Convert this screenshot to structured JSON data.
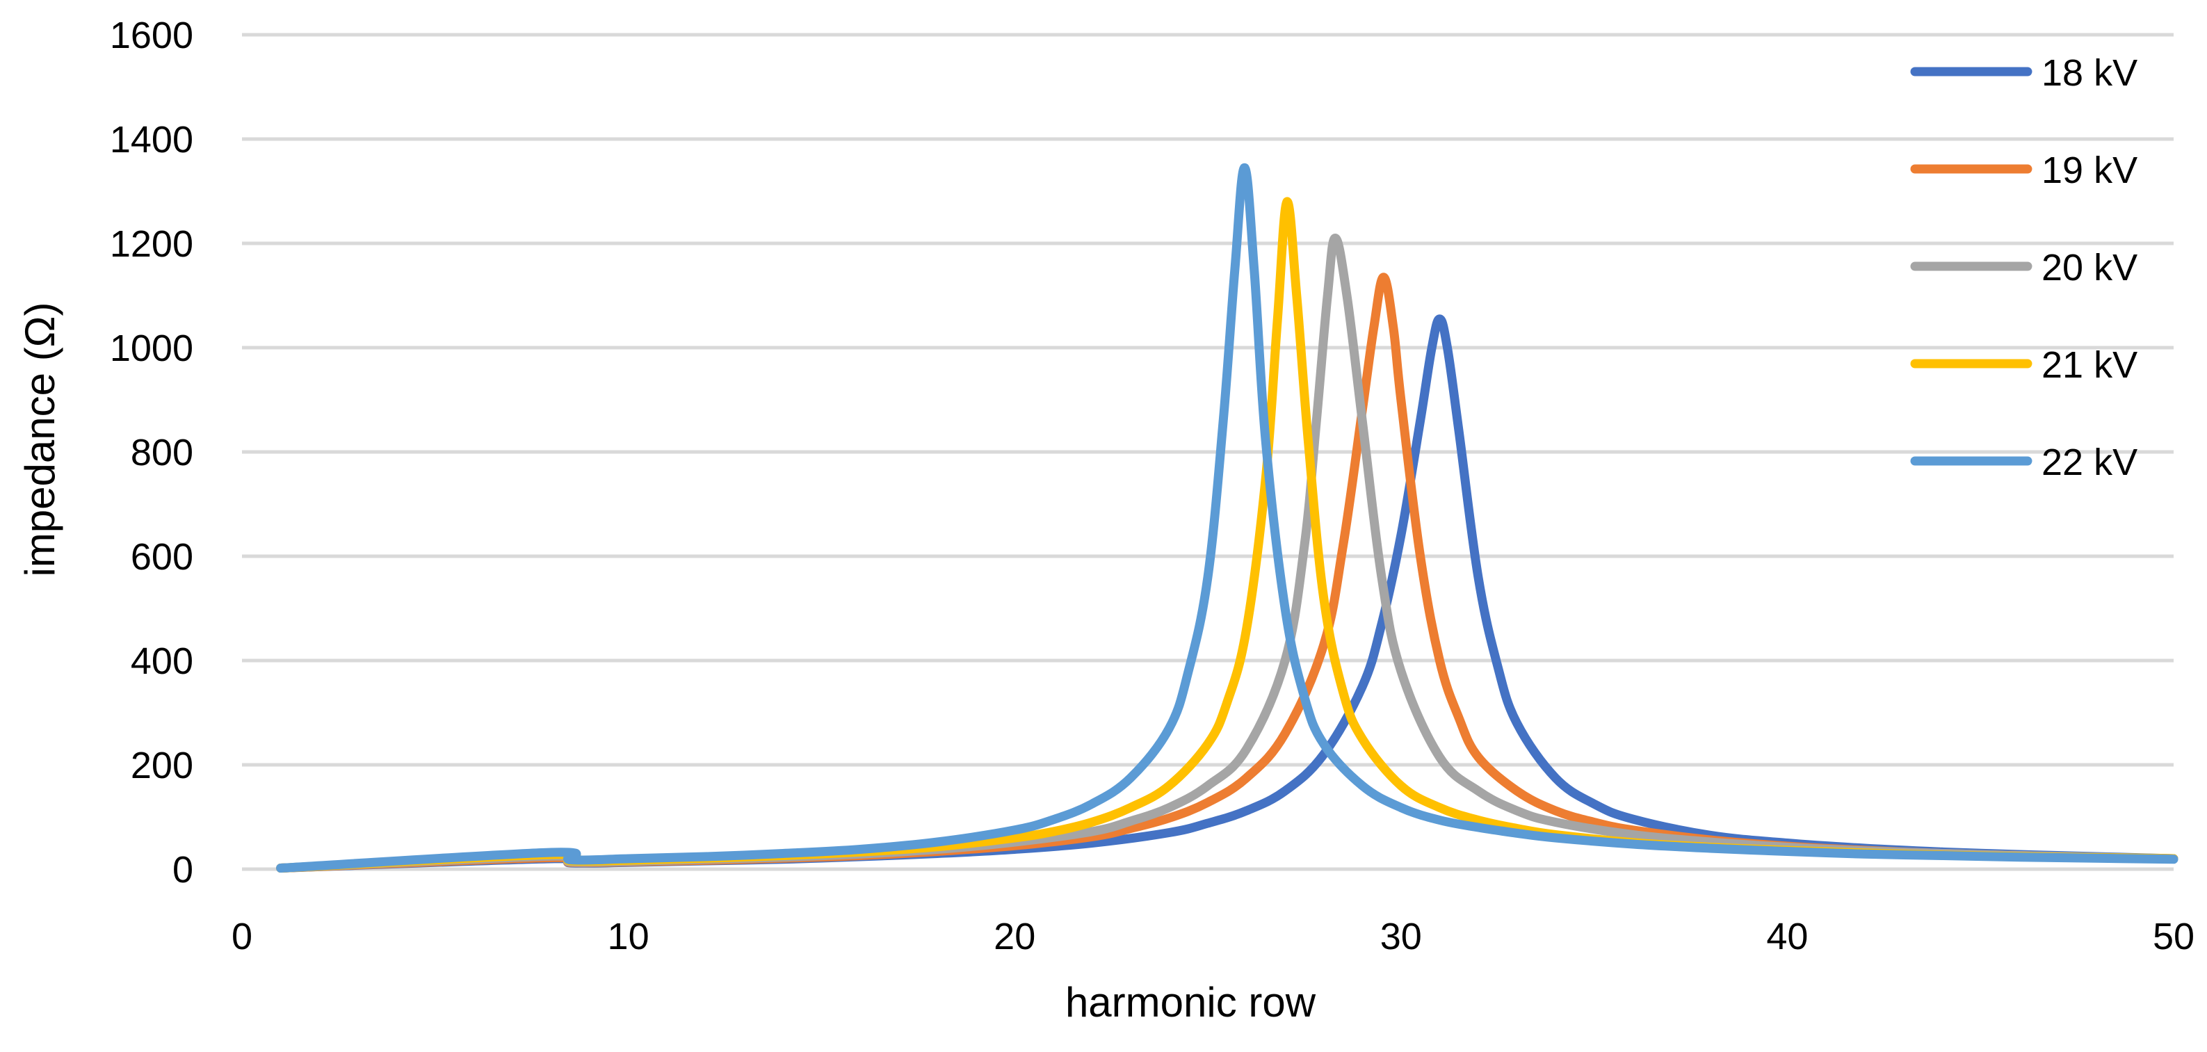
{
  "chart_data": {
    "type": "line",
    "title": "",
    "xlabel": "harmonic row",
    "ylabel": "impedance (Ω)",
    "xlim": [
      0,
      50
    ],
    "ylim": [
      0,
      1600
    ],
    "xticks": [
      0,
      10,
      20,
      30,
      40,
      50
    ],
    "yticks": [
      0,
      200,
      400,
      600,
      800,
      1000,
      1200,
      1400,
      1600
    ],
    "grid": true,
    "legend_position": "top-right",
    "series": [
      {
        "name": "18 kV",
        "color": "#4472C4",
        "x": [
          1,
          8,
          8.5,
          10,
          12,
          14,
          16,
          18,
          20,
          22,
          24,
          25,
          26,
          27,
          28,
          29,
          29.5,
          30,
          30.5,
          30.8,
          31,
          31.2,
          31.5,
          32,
          32.5,
          33,
          34,
          35,
          36,
          38,
          40,
          42,
          44,
          46,
          48,
          50
        ],
        "y": [
          2,
          20,
          12,
          13,
          16,
          19,
          24,
          30,
          38,
          50,
          70,
          88,
          112,
          150,
          220,
          350,
          470,
          640,
          860,
          1000,
          1055,
          1000,
          840,
          560,
          390,
          280,
          175,
          125,
          96,
          65,
          50,
          40,
          33,
          28,
          24,
          20
        ]
      },
      {
        "name": "19 kV",
        "color": "#ED7D31",
        "x": [
          1,
          8,
          8.5,
          10,
          12,
          14,
          16,
          18,
          20,
          22,
          23,
          24,
          25,
          26,
          27,
          28,
          28.5,
          29,
          29.3,
          29.55,
          29.8,
          30,
          30.5,
          31,
          31.5,
          32,
          33,
          34,
          35,
          36,
          38,
          40,
          42,
          44,
          46,
          48,
          50
        ],
        "y": [
          2,
          22,
          13,
          14,
          17,
          21,
          26,
          34,
          45,
          62,
          78,
          98,
          128,
          175,
          260,
          430,
          620,
          880,
          1040,
          1135,
          1040,
          900,
          600,
          400,
          290,
          215,
          150,
          112,
          90,
          75,
          56,
          44,
          36,
          30,
          26,
          22,
          20
        ]
      },
      {
        "name": "20 kV",
        "color": "#A5A5A5",
        "x": [
          1,
          8,
          8.5,
          10,
          12,
          14,
          16,
          18,
          20,
          22,
          23,
          24,
          25,
          26,
          27,
          27.5,
          27.8,
          28.1,
          28.3,
          28.6,
          29,
          29.5,
          30,
          31,
          32,
          33,
          34,
          36,
          38,
          40,
          42,
          44,
          46,
          48,
          50
        ],
        "y": [
          2,
          25,
          14,
          15,
          19,
          23,
          29,
          38,
          52,
          72,
          92,
          118,
          160,
          230,
          400,
          620,
          850,
          1100,
          1210,
          1100,
          860,
          560,
          380,
          215,
          150,
          112,
          90,
          66,
          52,
          42,
          35,
          30,
          26,
          23,
          20
        ]
      },
      {
        "name": "21 kV",
        "color": "#FFC000",
        "x": [
          1,
          8,
          8.5,
          10,
          12,
          14,
          16,
          18,
          20,
          21,
          22,
          23,
          24,
          25,
          25.5,
          26,
          26.5,
          26.8,
          27.05,
          27.3,
          27.6,
          28,
          28.5,
          29,
          30,
          31,
          32,
          33,
          34,
          36,
          38,
          40,
          42,
          44,
          46,
          48,
          50
        ],
        "y": [
          2,
          28,
          16,
          17,
          21,
          26,
          33,
          43,
          60,
          72,
          90,
          118,
          160,
          240,
          320,
          460,
          750,
          1050,
          1280,
          1100,
          820,
          520,
          340,
          250,
          160,
          118,
          94,
          78,
          66,
          51,
          42,
          36,
          31,
          27,
          24,
          22,
          20
        ]
      },
      {
        "name": "22 kV",
        "color": "#5B9BD5",
        "x": [
          1,
          8,
          8.5,
          10,
          12,
          14,
          16,
          18,
          20,
          21,
          22,
          23,
          24,
          24.5,
          25,
          25.4,
          25.7,
          25.95,
          26.2,
          26.5,
          27,
          27.5,
          28,
          29,
          30,
          31,
          32,
          33,
          34,
          36,
          38,
          40,
          42,
          44,
          46,
          48,
          50
        ],
        "y": [
          2,
          32,
          18,
          20,
          24,
          30,
          38,
          52,
          75,
          95,
          125,
          175,
          270,
          380,
          560,
          860,
          1150,
          1345,
          1150,
          820,
          500,
          330,
          240,
          160,
          118,
          94,
          80,
          69,
          60,
          48,
          40,
          34,
          29,
          26,
          23,
          21,
          19
        ]
      }
    ]
  }
}
